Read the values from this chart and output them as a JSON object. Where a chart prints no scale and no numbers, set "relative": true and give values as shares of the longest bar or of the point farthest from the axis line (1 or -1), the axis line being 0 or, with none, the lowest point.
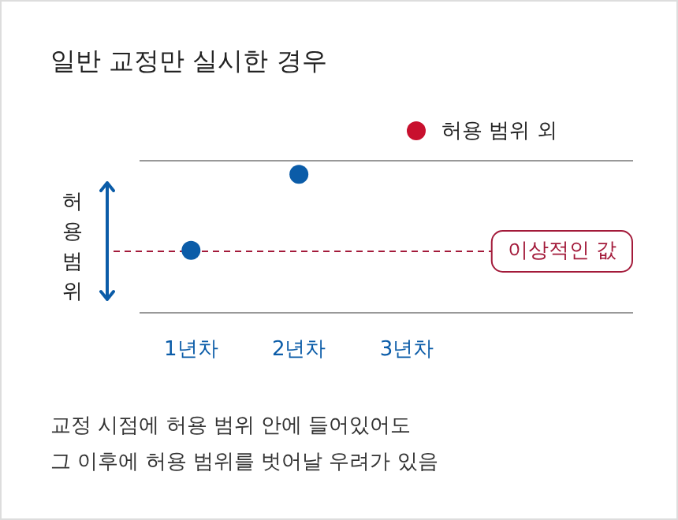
{
  "chart_data": {
    "type": "scatter",
    "title": "일반 교정만 실시한 경우",
    "categories": [
      "1년차",
      "2년차",
      "3년차"
    ],
    "relative": true,
    "series": [
      {
        "color": "#0b5ca8",
        "values": [
          0,
          1,
          null
        ]
      }
    ],
    "marker": "circle",
    "ref_lines": [
      {
        "axis": "y",
        "value": 0,
        "label": "이상적인 값",
        "color": "#a31a3a",
        "line_style": "dashed"
      }
    ],
    "annotations": [
      "허용 범위 외",
      "허용 범위",
      "교정 시점에 허용 범위 안에 들어있어도",
      "그 이후에 허용 범위를 벗어날 우려가 있음"
    ]
  }
}
